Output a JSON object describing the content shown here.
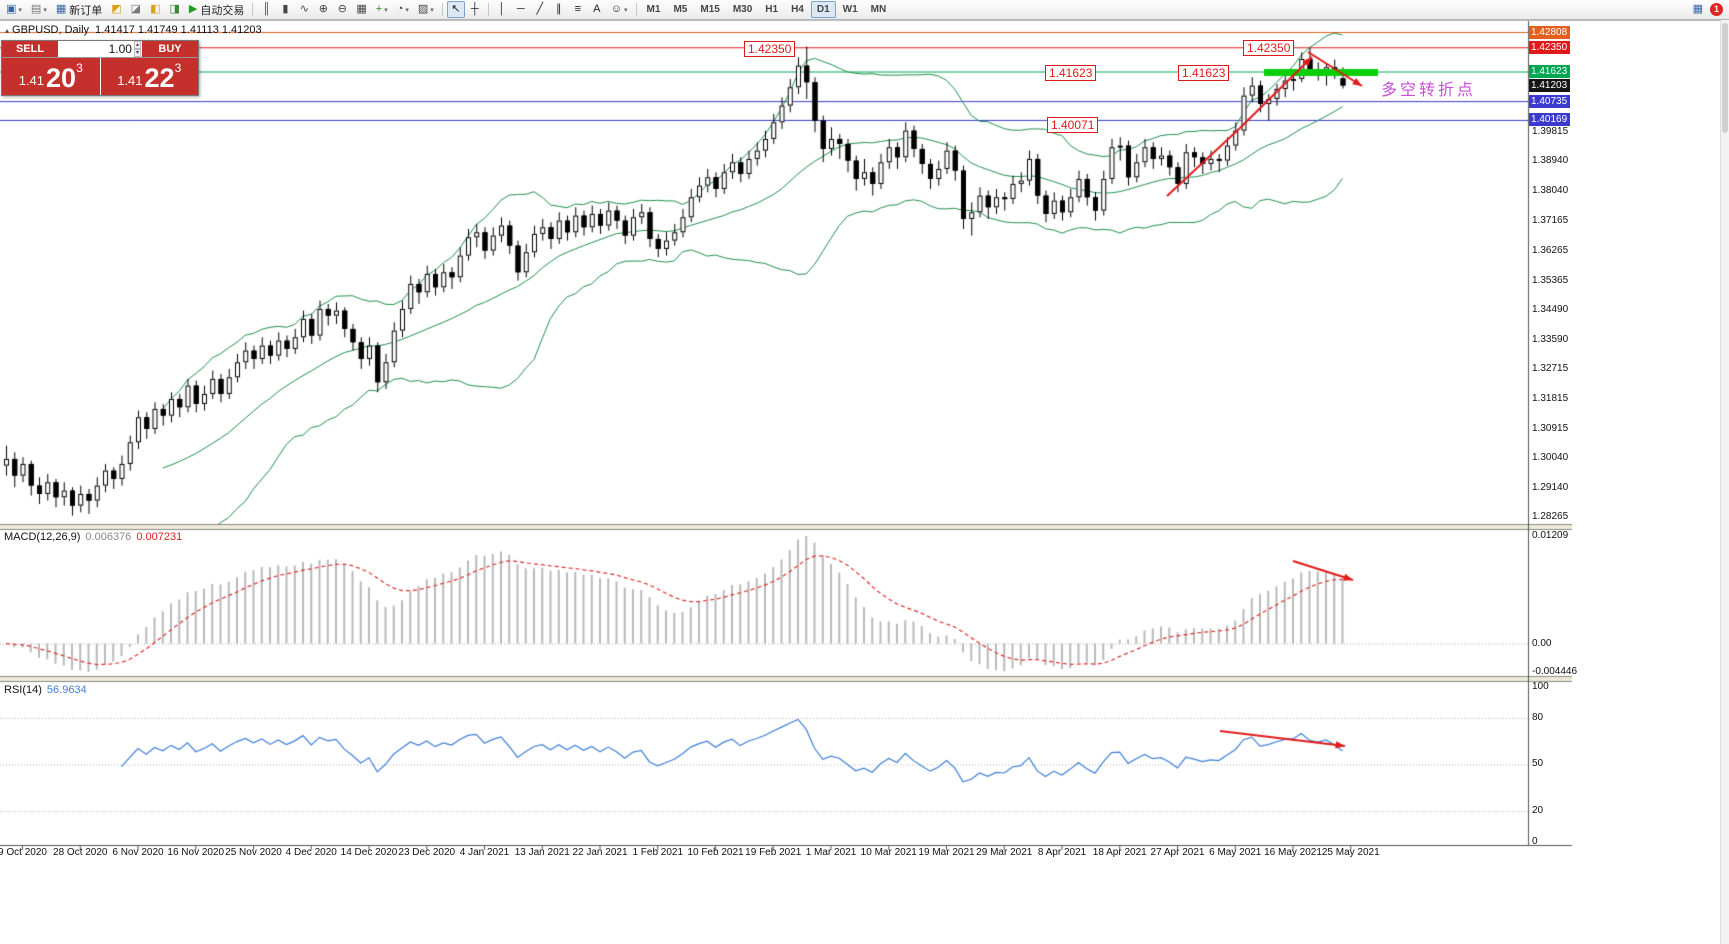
{
  "icons": {
    "collapse": "▴",
    "caret_down": "▾",
    "spinner_up": "▴",
    "spinner_down": "▾",
    "right_button": "▦"
  },
  "toolbar": {
    "buttons": [
      {
        "name": "new-chart",
        "glyph": "▣",
        "color": "#3565a5",
        "caret": true
      },
      {
        "name": "profiles",
        "glyph": "▤",
        "color": "#777777",
        "caret": true
      },
      {
        "name": "new-order",
        "glyph": "▦",
        "color": "#3565a5",
        "label": "新订单"
      },
      {
        "name": "market-watch",
        "glyph": "◩",
        "color": "#d9a018"
      },
      {
        "name": "data-window",
        "glyph": "◪",
        "color": "#777777"
      },
      {
        "name": "navigator",
        "glyph": "◧",
        "color": "#d9a018"
      },
      {
        "name": "terminal",
        "glyph": "◨",
        "color": "#3a8a3a"
      },
      {
        "name": "auto-trading",
        "glyph": "▶",
        "color": "#1e9e1e",
        "label": "自动交易"
      },
      {
        "sep": true
      },
      {
        "name": "bar-chart",
        "glyph": "║",
        "color": "#444444"
      },
      {
        "name": "candlestick-chart",
        "glyph": "▮",
        "color": "#444444"
      },
      {
        "name": "line-chart",
        "glyph": "∿",
        "color": "#444444"
      },
      {
        "name": "zoom-in",
        "glyph": "⊕",
        "color": "#444444"
      },
      {
        "name": "zoom-out",
        "glyph": "⊖",
        "color": "#444444"
      },
      {
        "name": "tile-windows",
        "glyph": "▦",
        "color": "#444444"
      },
      {
        "name": "indicators",
        "glyph": "+",
        "color": "#1e9e1e",
        "caret": true
      },
      {
        "name": "periods",
        "glyph": "◔",
        "color": "#444444",
        "caret": true
      },
      {
        "name": "templates",
        "glyph": "▨",
        "color": "#444444",
        "caret": true
      },
      {
        "sep": true
      },
      {
        "name": "cursor",
        "glyph": "↖",
        "color": "#222222",
        "active": true
      },
      {
        "name": "crosshair",
        "glyph": "┼",
        "color": "#222222"
      },
      {
        "sep": true
      },
      {
        "name": "vertical-line",
        "glyph": "│",
        "color": "#222222"
      },
      {
        "name": "horizontal-line",
        "glyph": "─",
        "color": "#222222"
      },
      {
        "name": "trendline",
        "glyph": "╱",
        "color": "#222222"
      },
      {
        "name": "channel",
        "glyph": "∥",
        "color": "#222222"
      },
      {
        "name": "fibonacci",
        "glyph": "≡",
        "color": "#222222"
      },
      {
        "name": "text",
        "glyph": "A",
        "color": "#222222"
      },
      {
        "name": "arrows",
        "glyph": "☺",
        "color": "#222222",
        "caret": true
      },
      {
        "sep": true
      }
    ],
    "timeframes": [
      "M1",
      "M5",
      "M15",
      "M30",
      "H1",
      "H4",
      "D1",
      "W1",
      "MN"
    ],
    "active_timeframe": "D1",
    "badge_count": "1"
  },
  "chart_header": {
    "symbol_tf": "GBPUSD, Daily",
    "ohlc": "1.41417 1.41749 1.41113 1.41203"
  },
  "trade_panel": {
    "sell_label": "SELL",
    "buy_label": "BUY",
    "volume": "1.00",
    "sell_price_big": "1.41",
    "sell_price_main": "20",
    "sell_price_sup": "3",
    "buy_price_big": "1.41",
    "buy_price_main": "22",
    "buy_price_sup": "3"
  },
  "annotations": {
    "price_labels": [
      "1.42350",
      "1.42350",
      "1.41623",
      "1.41623",
      "1.40071"
    ],
    "turning_point": "多空转折点"
  },
  "price_scale": {
    "badges": [
      {
        "value": "1.42808",
        "color": "#e2601f"
      },
      {
        "value": "1.42350",
        "color": "#e01a1a"
      },
      {
        "value": "1.41623",
        "color": "#00a651"
      },
      {
        "value": "1.41203",
        "color": "#151515"
      },
      {
        "value": "1.40735",
        "color": "#3a3ace"
      },
      {
        "value": "1.40169",
        "color": "#3a3ace"
      }
    ],
    "ticks": [
      "1.39815",
      "1.38940",
      "1.38040",
      "1.37165",
      "1.36265",
      "1.35365",
      "1.34490",
      "1.33590",
      "1.32715",
      "1.31815",
      "1.30915",
      "1.30040",
      "1.29140",
      "1.28265"
    ]
  },
  "macd_panel": {
    "name": "MACD(12,26,9)",
    "main_value": "0.006376",
    "signal_value": "0.007231",
    "scale_top": "0.01209",
    "scale_zero": "0.00",
    "scale_bottom": "-0.004446"
  },
  "rsi_panel": {
    "name": "RSI(14)",
    "value": "56.9634",
    "scale": [
      "100",
      "80",
      "50",
      "20",
      "0"
    ]
  },
  "chart_data": {
    "type": "candlestick",
    "symbol": "GBPUSD",
    "timeframe": "Daily",
    "visible_range": {
      "price_min": 1.28048,
      "price_max": 1.42928
    },
    "x_labels": [
      "9 Oct 2020",
      "28 Oct 2020",
      "6 Nov 2020",
      "16 Nov 2020",
      "25 Nov 2020",
      "4 Dec 2020",
      "14 Dec 2020",
      "23 Dec 2020",
      "4 Jan 2021",
      "13 Jan 2021",
      "22 Jan 2021",
      "1 Feb 2021",
      "10 Feb 2021",
      "19 Feb 2021",
      "1 Mar 2021",
      "10 Mar 2021",
      "19 Mar 2021",
      "29 Mar 2021",
      "8 Apr 2021",
      "18 Apr 2021",
      "27 Apr 2021",
      "6 May 2021",
      "16 May 2021",
      "25 May 2021"
    ],
    "levels": [
      {
        "price": 1.42808,
        "color": "#e2601f"
      },
      {
        "price": 1.4235,
        "color": "#e01a1a"
      },
      {
        "price": 1.41623,
        "color": "#00a651"
      },
      {
        "price": 1.40735,
        "color": "#3a3ace"
      },
      {
        "price": 1.40169,
        "color": "#3a3ace"
      }
    ],
    "current_price": 1.41203,
    "indicators": {
      "bollinger": {
        "period": 20,
        "deviation": 2,
        "color": "#1f8f4d"
      },
      "macd": {
        "fast": 12,
        "slow": 26,
        "signal": 9,
        "current_main": 0.006376,
        "current_signal": 0.007231
      },
      "rsi": {
        "period": 14,
        "current": 56.9634,
        "levels": [
          80,
          50,
          20
        ]
      }
    },
    "candles": [
      [
        1.298,
        1.304,
        1.295,
        1.3
      ],
      [
        1.3,
        1.302,
        1.2915,
        1.295
      ],
      [
        1.295,
        1.3005,
        1.293,
        1.2985
      ],
      [
        1.2985,
        1.2995,
        1.289,
        1.292
      ],
      [
        1.292,
        1.2945,
        1.2865,
        1.2895
      ],
      [
        1.2895,
        1.2955,
        1.2875,
        1.293
      ],
      [
        1.293,
        1.294,
        1.2855,
        1.2885
      ],
      [
        1.2885,
        1.293,
        1.286,
        1.2905
      ],
      [
        1.2905,
        1.2915,
        1.283,
        1.286
      ],
      [
        1.286,
        1.292,
        1.284,
        1.2895
      ],
      [
        1.2895,
        1.291,
        1.2835,
        1.2875
      ],
      [
        1.2875,
        1.2945,
        1.2855,
        1.292
      ],
      [
        1.292,
        1.2985,
        1.29,
        1.2965
      ],
      [
        1.2965,
        1.2975,
        1.291,
        1.294
      ],
      [
        1.294,
        1.301,
        1.292,
        1.2985
      ],
      [
        1.2985,
        1.307,
        1.2965,
        1.305
      ],
      [
        1.305,
        1.3145,
        1.303,
        1.3125
      ],
      [
        1.3125,
        1.314,
        1.306,
        1.309
      ],
      [
        1.309,
        1.317,
        1.3075,
        1.315
      ],
      [
        1.315,
        1.3165,
        1.31,
        1.313
      ],
      [
        1.313,
        1.32,
        1.311,
        1.318
      ],
      [
        1.318,
        1.3195,
        1.3125,
        1.3155
      ],
      [
        1.3155,
        1.324,
        1.314,
        1.322
      ],
      [
        1.322,
        1.3235,
        1.314,
        1.3165
      ],
      [
        1.3165,
        1.322,
        1.3145,
        1.3195
      ],
      [
        1.3195,
        1.3265,
        1.318,
        1.324
      ],
      [
        1.324,
        1.3255,
        1.317,
        1.3195
      ],
      [
        1.3195,
        1.327,
        1.318,
        1.3245
      ],
      [
        1.3245,
        1.3315,
        1.323,
        1.329
      ],
      [
        1.329,
        1.335,
        1.327,
        1.3325
      ],
      [
        1.3325,
        1.334,
        1.327,
        1.33
      ],
      [
        1.33,
        1.3365,
        1.3285,
        1.334
      ],
      [
        1.334,
        1.3355,
        1.3285,
        1.331
      ],
      [
        1.331,
        1.338,
        1.3295,
        1.3355
      ],
      [
        1.3355,
        1.337,
        1.3305,
        1.333
      ],
      [
        1.333,
        1.339,
        1.3315,
        1.3365
      ],
      [
        1.3365,
        1.3445,
        1.335,
        1.342
      ],
      [
        1.342,
        1.3435,
        1.3345,
        1.337
      ],
      [
        1.337,
        1.3475,
        1.3355,
        1.345
      ],
      [
        1.345,
        1.3465,
        1.34,
        1.343
      ],
      [
        1.343,
        1.347,
        1.3405,
        1.3445
      ],
      [
        1.3445,
        1.3455,
        1.3365,
        1.339
      ],
      [
        1.339,
        1.3405,
        1.3325,
        1.335
      ],
      [
        1.335,
        1.3365,
        1.327,
        1.33
      ],
      [
        1.33,
        1.3365,
        1.328,
        1.334
      ],
      [
        1.334,
        1.335,
        1.32,
        1.323
      ],
      [
        1.323,
        1.3315,
        1.321,
        1.329
      ],
      [
        1.329,
        1.341,
        1.3275,
        1.3385
      ],
      [
        1.3385,
        1.3475,
        1.3365,
        1.345
      ],
      [
        1.345,
        1.355,
        1.3435,
        1.3525
      ],
      [
        1.3525,
        1.354,
        1.3465,
        1.35
      ],
      [
        1.35,
        1.358,
        1.3485,
        1.3555
      ],
      [
        1.3555,
        1.357,
        1.349,
        1.3515
      ],
      [
        1.3515,
        1.3585,
        1.35,
        1.356
      ],
      [
        1.356,
        1.3575,
        1.351,
        1.3545
      ],
      [
        1.3545,
        1.3635,
        1.353,
        1.361
      ],
      [
        1.361,
        1.369,
        1.3595,
        1.3665
      ],
      [
        1.3665,
        1.3705,
        1.3635,
        1.368
      ],
      [
        1.368,
        1.3695,
        1.36,
        1.3625
      ],
      [
        1.3625,
        1.3695,
        1.361,
        1.367
      ],
      [
        1.367,
        1.3725,
        1.365,
        1.37
      ],
      [
        1.37,
        1.3715,
        1.3615,
        1.364
      ],
      [
        1.364,
        1.3655,
        1.3535,
        1.356
      ],
      [
        1.356,
        1.3645,
        1.3545,
        1.362
      ],
      [
        1.362,
        1.37,
        1.3605,
        1.3675
      ],
      [
        1.3675,
        1.372,
        1.3655,
        1.3695
      ],
      [
        1.3695,
        1.371,
        1.363,
        1.366
      ],
      [
        1.366,
        1.374,
        1.3645,
        1.3715
      ],
      [
        1.3715,
        1.373,
        1.3655,
        1.368
      ],
      [
        1.368,
        1.3755,
        1.3665,
        1.373
      ],
      [
        1.373,
        1.3745,
        1.367,
        1.3695
      ],
      [
        1.3695,
        1.376,
        1.368,
        1.3735
      ],
      [
        1.3735,
        1.375,
        1.3675,
        1.37
      ],
      [
        1.37,
        1.377,
        1.3685,
        1.3745
      ],
      [
        1.3745,
        1.376,
        1.369,
        1.3715
      ],
      [
        1.3715,
        1.373,
        1.3645,
        1.367
      ],
      [
        1.367,
        1.375,
        1.3655,
        1.3725
      ],
      [
        1.3725,
        1.3765,
        1.3705,
        1.374
      ],
      [
        1.374,
        1.3755,
        1.3635,
        1.366
      ],
      [
        1.366,
        1.3675,
        1.3605,
        1.363
      ],
      [
        1.363,
        1.368,
        1.361,
        1.3655
      ],
      [
        1.3655,
        1.3705,
        1.364,
        1.368
      ],
      [
        1.368,
        1.375,
        1.3665,
        1.3725
      ],
      [
        1.3725,
        1.381,
        1.371,
        1.3785
      ],
      [
        1.3785,
        1.3845,
        1.377,
        1.382
      ],
      [
        1.382,
        1.387,
        1.38,
        1.3845
      ],
      [
        1.3845,
        1.386,
        1.3785,
        1.381
      ],
      [
        1.381,
        1.3885,
        1.3795,
        1.386
      ],
      [
        1.386,
        1.3915,
        1.384,
        1.389
      ],
      [
        1.389,
        1.3905,
        1.383,
        1.3855
      ],
      [
        1.3855,
        1.3925,
        1.384,
        1.39
      ],
      [
        1.39,
        1.395,
        1.388,
        1.3925
      ],
      [
        1.3925,
        1.3985,
        1.3905,
        1.396
      ],
      [
        1.396,
        1.4035,
        1.3945,
        1.401
      ],
      [
        1.401,
        1.4085,
        1.399,
        1.406
      ],
      [
        1.406,
        1.414,
        1.404,
        1.4115
      ],
      [
        1.4115,
        1.4205,
        1.4095,
        1.418
      ],
      [
        1.418,
        1.4237,
        1.408,
        1.413
      ],
      [
        1.413,
        1.4145,
        1.398,
        1.4015
      ],
      [
        1.4015,
        1.403,
        1.389,
        1.393
      ],
      [
        1.393,
        1.3995,
        1.391,
        1.396
      ],
      [
        1.396,
        1.3975,
        1.39,
        1.3945
      ],
      [
        1.3945,
        1.396,
        1.386,
        1.3895
      ],
      [
        1.3895,
        1.391,
        1.3805,
        1.384
      ],
      [
        1.384,
        1.39,
        1.382,
        1.386
      ],
      [
        1.386,
        1.3875,
        1.379,
        1.3825
      ],
      [
        1.3825,
        1.3915,
        1.381,
        1.389
      ],
      [
        1.389,
        1.396,
        1.387,
        1.3935
      ],
      [
        1.3935,
        1.395,
        1.387,
        1.3905
      ],
      [
        1.3905,
        1.401,
        1.389,
        1.3985
      ],
      [
        1.3985,
        1.4,
        1.3905,
        1.393
      ],
      [
        1.393,
        1.3945,
        1.3855,
        1.3885
      ],
      [
        1.3885,
        1.39,
        1.381,
        1.384
      ],
      [
        1.384,
        1.3895,
        1.382,
        1.387
      ],
      [
        1.387,
        1.395,
        1.3855,
        1.3925
      ],
      [
        1.3925,
        1.394,
        1.3835,
        1.3865
      ],
      [
        1.3865,
        1.388,
        1.369,
        1.372
      ],
      [
        1.372,
        1.377,
        1.367,
        1.374
      ],
      [
        1.374,
        1.3815,
        1.3725,
        1.379
      ],
      [
        1.379,
        1.3805,
        1.372,
        1.3755
      ],
      [
        1.3755,
        1.381,
        1.3735,
        1.3785
      ],
      [
        1.3785,
        1.38,
        1.3745,
        1.378
      ],
      [
        1.378,
        1.385,
        1.3765,
        1.3825
      ],
      [
        1.3825,
        1.386,
        1.38,
        1.3835
      ],
      [
        1.3835,
        1.3925,
        1.382,
        1.39
      ],
      [
        1.39,
        1.3915,
        1.3765,
        1.379
      ],
      [
        1.379,
        1.3805,
        1.371,
        1.3735
      ],
      [
        1.3735,
        1.38,
        1.372,
        1.3775
      ],
      [
        1.3775,
        1.379,
        1.3715,
        1.374
      ],
      [
        1.374,
        1.381,
        1.3725,
        1.3785
      ],
      [
        1.3785,
        1.3865,
        1.377,
        1.384
      ],
      [
        1.384,
        1.3855,
        1.376,
        1.3785
      ],
      [
        1.3785,
        1.38,
        1.3715,
        1.3745
      ],
      [
        1.3745,
        1.3865,
        1.373,
        1.384
      ],
      [
        1.384,
        1.396,
        1.3825,
        1.3935
      ],
      [
        1.3935,
        1.3965,
        1.3895,
        1.394
      ],
      [
        1.394,
        1.3955,
        1.382,
        1.3845
      ],
      [
        1.3845,
        1.3915,
        1.383,
        1.389
      ],
      [
        1.389,
        1.396,
        1.3875,
        1.3935
      ],
      [
        1.3935,
        1.395,
        1.387,
        1.39
      ],
      [
        1.39,
        1.3935,
        1.388,
        1.391
      ],
      [
        1.391,
        1.3925,
        1.385,
        1.3875
      ],
      [
        1.3875,
        1.389,
        1.38,
        1.3825
      ],
      [
        1.3825,
        1.3945,
        1.381,
        1.392
      ],
      [
        1.392,
        1.3935,
        1.3875,
        1.3905
      ],
      [
        1.3905,
        1.392,
        1.3855,
        1.3885
      ],
      [
        1.3885,
        1.3925,
        1.3865,
        1.39
      ],
      [
        1.39,
        1.3915,
        1.386,
        1.3895
      ],
      [
        1.3895,
        1.3965,
        1.388,
        1.394
      ],
      [
        1.394,
        1.401,
        1.3925,
        1.3985
      ],
      [
        1.3985,
        1.4115,
        1.397,
        1.409
      ],
      [
        1.409,
        1.4145,
        1.407,
        1.412
      ],
      [
        1.412,
        1.4135,
        1.404,
        1.4065
      ],
      [
        1.4065,
        1.4095,
        1.4015,
        1.408
      ],
      [
        1.408,
        1.4125,
        1.406,
        1.411
      ],
      [
        1.411,
        1.415,
        1.4085,
        1.4135
      ],
      [
        1.4135,
        1.4165,
        1.4105,
        1.414
      ],
      [
        1.414,
        1.422,
        1.413,
        1.42
      ],
      [
        1.42,
        1.4234,
        1.415,
        1.4165
      ],
      [
        1.4165,
        1.419,
        1.4135,
        1.4155
      ],
      [
        1.4155,
        1.4185,
        1.412,
        1.4175
      ],
      [
        1.4175,
        1.4198,
        1.414,
        1.4152
      ],
      [
        1.41417,
        1.41749,
        1.41113,
        1.41203
      ]
    ]
  }
}
